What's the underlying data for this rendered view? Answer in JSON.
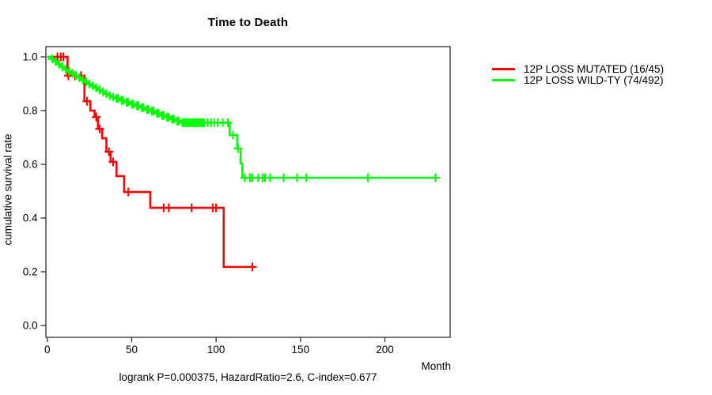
{
  "title": "Time to Death",
  "y_axis_label": "cumulative survival rate",
  "x_axis_unit": "Month",
  "footer": "logrank P=0.000375, HazardRatio=2.6, C-index=0.677",
  "legend": {
    "items": [
      {
        "label": "12P LOSS MUTATED (16/45)",
        "color": "#ff0000"
      },
      {
        "label": "12P LOSS WILD-TY (74/492)",
        "color": "#00ff00"
      }
    ]
  },
  "chart_data": {
    "type": "line",
    "chart_kind": "kaplan-meier-step",
    "title": "Time to Death",
    "xlabel": "Month",
    "ylabel": "cumulative survival rate",
    "x_ticks": [
      "0",
      "50",
      "100",
      "150",
      "200"
    ],
    "y_ticks": [
      "0.0",
      "0.2",
      "0.4",
      "0.6",
      "0.8",
      "1.0"
    ],
    "xlim": [
      0,
      240
    ],
    "ylim": [
      0,
      1.0
    ],
    "grid": false,
    "legend_position": "right-outside",
    "axis_color": "#2e2e2e",
    "series": [
      {
        "name": "12P LOSS MUTATED (16/45)",
        "color": "#ff0000",
        "steps": [
          [
            0,
            1.0
          ],
          [
            12,
            0.93
          ],
          [
            22,
            0.835
          ],
          [
            25.5,
            0.8
          ],
          [
            28,
            0.776
          ],
          [
            30,
            0.732
          ],
          [
            32.5,
            0.697
          ],
          [
            35,
            0.647
          ],
          [
            37.5,
            0.609
          ],
          [
            41,
            0.556
          ],
          [
            45.5,
            0.497
          ],
          [
            61,
            0.438
          ],
          [
            104.5,
            0.218
          ]
        ],
        "end_month": 123,
        "censor_months": [
          6,
          8,
          9.5,
          12.5,
          16.5,
          20,
          23.5,
          29,
          31,
          36.5,
          39,
          48,
          69,
          72,
          85.5,
          98,
          100,
          121.5
        ]
      },
      {
        "name": "12P LOSS WILD-TY (74/492)",
        "color": "#00ff00",
        "steps": [
          [
            0,
            1.0
          ],
          [
            2,
            0.992
          ],
          [
            4,
            0.983
          ],
          [
            6,
            0.973
          ],
          [
            8,
            0.963
          ],
          [
            10,
            0.954
          ],
          [
            12,
            0.946
          ],
          [
            14,
            0.938
          ],
          [
            16,
            0.93
          ],
          [
            18,
            0.923
          ],
          [
            20,
            0.915
          ],
          [
            22,
            0.907
          ],
          [
            24,
            0.899
          ],
          [
            26,
            0.892
          ],
          [
            28,
            0.885
          ],
          [
            30,
            0.877
          ],
          [
            32,
            0.87
          ],
          [
            34,
            0.863
          ],
          [
            36,
            0.856
          ],
          [
            38,
            0.85
          ],
          [
            40,
            0.845
          ],
          [
            43,
            0.838
          ],
          [
            46,
            0.831
          ],
          [
            49,
            0.824
          ],
          [
            52,
            0.818
          ],
          [
            55,
            0.811
          ],
          [
            58,
            0.804
          ],
          [
            61,
            0.798
          ],
          [
            64,
            0.79
          ],
          [
            67,
            0.782
          ],
          [
            70,
            0.775
          ],
          [
            73,
            0.768
          ],
          [
            76,
            0.761
          ],
          [
            79,
            0.755
          ],
          [
            108,
            0.709
          ],
          [
            112.5,
            0.659
          ],
          [
            114.5,
            0.603
          ],
          [
            115.5,
            0.55
          ]
        ],
        "end_month": 231,
        "censor_months": [
          3,
          5,
          7,
          9,
          11,
          13,
          15,
          17,
          19,
          21,
          23,
          25,
          27,
          29,
          31,
          33,
          35,
          37,
          39,
          41,
          42,
          44,
          45,
          47,
          48,
          50,
          51,
          53,
          54,
          56,
          57,
          59,
          60,
          62,
          63,
          65,
          66,
          68,
          69,
          71,
          72,
          74,
          75,
          77,
          78,
          80,
          81,
          82,
          83,
          84,
          85,
          86,
          87,
          88,
          89,
          90,
          91,
          92,
          93,
          95,
          97,
          99,
          101,
          104,
          107,
          110,
          113,
          117,
          120,
          121.5,
          125,
          127.5,
          129,
          132,
          140,
          148,
          153.5,
          190,
          230
        ]
      }
    ],
    "footer": "logrank P=0.000375, HazardRatio=2.6, C-index=0.677"
  }
}
